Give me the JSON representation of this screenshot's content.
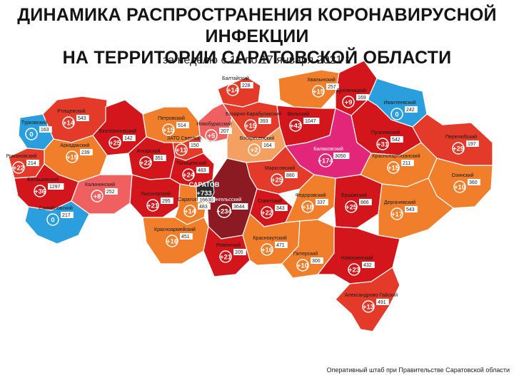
{
  "title": "ДИНАМИКА РАСПРОСТРАНЕНИЯ КОРОНАВИРУСНОЙ ИНФЕКЦИИ НА ТЕРРИТОРИИ САРАТОВСКОЙ ОБЛАСТИ",
  "title_lines": [
    "ДИНАМИКА РАСПРОСТРАНЕНИЯ КОРОНАВИРУСНОЙ ИНФЕКЦИИ",
    "НА ТЕРРИТОРИИ САРАТОВСКОЙ ОБЛАСТИ"
  ],
  "subtitle": "за неделю с 11 по 17 января 2021 г.",
  "footer": "Оперативный штаб при Правительстве Саратовской области",
  "colors": {
    "dark_red": "#d2161c",
    "red": "#e33a2a",
    "orange": "#f07e2b",
    "light_orange": "#f5a063",
    "pink": "#f06060",
    "blue": "#2b9fde",
    "magenta": "#e2267a",
    "maroon": "#8b1a22",
    "city": "#2a2a2a"
  },
  "districts": [
    {
      "name": "Балтайский",
      "new": "+14",
      "total": "228",
      "color": "red"
    },
    {
      "name": "Хвалынский",
      "new": "+15",
      "total": "257",
      "color": "orange"
    },
    {
      "name": "Духовницкий",
      "new": "+9",
      "total": "169",
      "color": "dark_red"
    },
    {
      "name": "Ивантеевский",
      "new": "0",
      "total": "242",
      "color": "blue"
    },
    {
      "name": "Ртищевский",
      "new": "+14",
      "total": "543",
      "color": "red"
    },
    {
      "name": "Турковский",
      "new": "0",
      "total": "163",
      "color": "blue"
    },
    {
      "name": "Новобурасский",
      "new": "+5",
      "total": "207",
      "color": "pink"
    },
    {
      "name": "Базарно-Карабулакский",
      "new": "+15",
      "total": "393",
      "color": "red"
    },
    {
      "name": "Вольский",
      "new": "+42",
      "total": "1047",
      "color": "dark_red"
    },
    {
      "name": "Петровский",
      "new": "+15",
      "total": "514",
      "color": "orange"
    },
    {
      "name": "Екатериновский",
      "new": "+25",
      "total": "142",
      "color": "dark_red"
    },
    {
      "name": "ЗАТО Светлый",
      "new": "+11",
      "total": "150",
      "color": "red"
    },
    {
      "name": "Пугачевский",
      "new": "+31",
      "total": "542",
      "color": "dark_red"
    },
    {
      "name": "Перелюбский",
      "new": "+29",
      "total": "197",
      "color": "red"
    },
    {
      "name": "Аркадакский",
      "new": "+19",
      "total": "239",
      "color": "orange"
    },
    {
      "name": "Аткарский",
      "new": "+22",
      "total": "351",
      "color": "dark_red"
    },
    {
      "name": "Воскресенский",
      "new": "+2",
      "total": "164",
      "color": "light_orange"
    },
    {
      "name": "Балаковский",
      "new": "+174",
      "total": "3050",
      "color": "magenta"
    },
    {
      "name": "Романовский",
      "new": "+22",
      "total": "214",
      "color": "red"
    },
    {
      "name": "Балашовский",
      "new": "+36",
      "total": "1297",
      "color": "dark_red"
    },
    {
      "name": "Татищевский",
      "new": "+24",
      "total": "483",
      "color": "dark_red"
    },
    {
      "name": "Марксовский",
      "new": "+25",
      "total": "880",
      "color": "red"
    },
    {
      "name": "Краснопартизанский",
      "new": "+15",
      "total": "211",
      "color": "orange"
    },
    {
      "name": "Озинский",
      "new": "+10",
      "total": "360",
      "color": "orange"
    },
    {
      "name": "Калининский",
      "new": "+8",
      "total": "252",
      "color": "pink"
    },
    {
      "name": "Лысогорский",
      "new": "+21",
      "total": "295",
      "color": "dark_red"
    },
    {
      "name": "Саратовский",
      "new": "+14",
      "total": "483",
      "color": "orange"
    },
    {
      "name": "Энгельсский",
      "new": "+234",
      "total": "3644",
      "color": "maroon"
    },
    {
      "name": "Советский",
      "new": "+22",
      "total": "343",
      "color": "dark_red"
    },
    {
      "name": "Федоровский",
      "new": "+18",
      "total": "337",
      "color": "orange"
    },
    {
      "name": "Ершовский",
      "new": "+25",
      "total": "866",
      "color": "dark_red"
    },
    {
      "name": "Дергачевский",
      "new": "+17",
      "total": "543",
      "color": "orange"
    },
    {
      "name": "Самойловский",
      "new": "0",
      "total": "217",
      "color": "blue"
    },
    {
      "name": "Красноармейский",
      "new": "+16",
      "total": "451",
      "color": "orange"
    },
    {
      "name": "Ровенский",
      "new": "+21",
      "total": "205",
      "color": "dark_red"
    },
    {
      "name": "Краснокутский",
      "new": "+16",
      "total": "471",
      "color": "orange"
    },
    {
      "name": "Питерский",
      "new": "+10",
      "total": "300",
      "color": "orange"
    },
    {
      "name": "Новоузенский",
      "new": "+23",
      "total": "432",
      "color": "dark_red"
    },
    {
      "name": "Александрово-Гайский",
      "new": "+13",
      "total": "491",
      "color": "red"
    }
  ],
  "city": {
    "name": "САРАТОВ",
    "new": "+733",
    "total": "16630"
  }
}
